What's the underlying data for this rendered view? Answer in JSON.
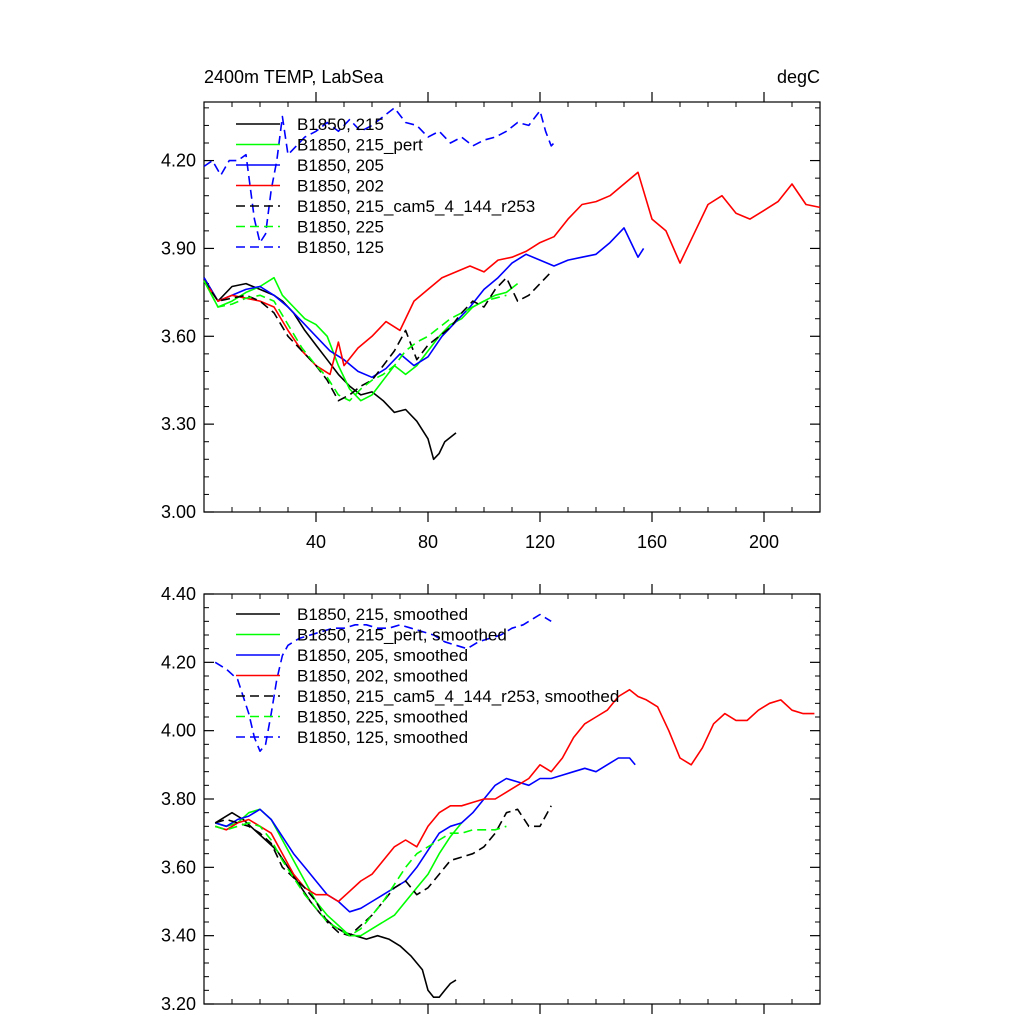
{
  "chart_data": [
    {
      "type": "line",
      "title_left": "2400m TEMP, LabSea",
      "title_right": "degC",
      "xlim": [
        0,
        220
      ],
      "ylim": [
        3.0,
        4.4
      ],
      "yticks": [
        3.0,
        3.3,
        3.6,
        3.9,
        4.2
      ],
      "ytick_labels": [
        "3.00",
        "3.30",
        "3.60",
        "3.90",
        "4.20"
      ],
      "xticks": [
        40,
        80,
        120,
        160,
        200
      ],
      "xtick_labels": [
        "40",
        "80",
        "120",
        "160",
        "200"
      ],
      "grid": false,
      "legend_position": "top-left",
      "series": [
        {
          "name": "B1850, 215",
          "color": "#000000",
          "dash": "solid",
          "x": [
            0,
            5,
            10,
            15,
            20,
            25,
            28,
            32,
            36,
            40,
            44,
            48,
            52,
            56,
            60,
            64,
            68,
            72,
            76,
            80,
            82,
            84,
            86,
            90
          ],
          "y": [
            3.8,
            3.72,
            3.77,
            3.78,
            3.76,
            3.74,
            3.72,
            3.68,
            3.62,
            3.57,
            3.52,
            3.47,
            3.43,
            3.4,
            3.41,
            3.38,
            3.34,
            3.35,
            3.31,
            3.25,
            3.18,
            3.2,
            3.24,
            3.27
          ]
        },
        {
          "name": "B1850, 215_pert",
          "color": "#00ff00",
          "dash": "solid",
          "x": [
            0,
            5,
            10,
            15,
            20,
            25,
            28,
            32,
            36,
            40,
            44,
            48,
            52,
            56,
            60,
            64,
            68,
            72,
            76,
            80,
            84,
            88,
            92,
            96,
            100,
            104,
            108,
            112
          ],
          "y": [
            3.79,
            3.7,
            3.72,
            3.75,
            3.77,
            3.8,
            3.74,
            3.7,
            3.66,
            3.64,
            3.6,
            3.5,
            3.42,
            3.38,
            3.4,
            3.45,
            3.5,
            3.47,
            3.5,
            3.55,
            3.6,
            3.64,
            3.66,
            3.7,
            3.72,
            3.74,
            3.75,
            3.78
          ]
        },
        {
          "name": "B1850, 205",
          "color": "#0000ff",
          "dash": "solid",
          "x": [
            0,
            5,
            10,
            15,
            20,
            25,
            30,
            35,
            40,
            45,
            50,
            55,
            60,
            65,
            70,
            75,
            80,
            85,
            90,
            95,
            100,
            105,
            110,
            115,
            120,
            125,
            130,
            135,
            140,
            145,
            150,
            155,
            157
          ],
          "y": [
            3.8,
            3.72,
            3.74,
            3.76,
            3.77,
            3.74,
            3.7,
            3.65,
            3.6,
            3.55,
            3.52,
            3.48,
            3.46,
            3.49,
            3.54,
            3.5,
            3.53,
            3.6,
            3.65,
            3.7,
            3.76,
            3.8,
            3.85,
            3.88,
            3.86,
            3.84,
            3.86,
            3.87,
            3.88,
            3.92,
            3.97,
            3.87,
            3.9
          ]
        },
        {
          "name": "B1850, 202",
          "color": "#ff0000",
          "dash": "solid",
          "x": [
            0,
            5,
            10,
            15,
            20,
            25,
            30,
            35,
            40,
            45,
            48,
            50,
            55,
            60,
            65,
            70,
            75,
            80,
            85,
            90,
            95,
            100,
            105,
            110,
            115,
            120,
            125,
            130,
            135,
            140,
            145,
            150,
            155,
            160,
            165,
            170,
            175,
            180,
            185,
            190,
            195,
            200,
            205,
            210,
            215,
            220
          ],
          "y": [
            3.79,
            3.72,
            3.74,
            3.73,
            3.72,
            3.7,
            3.62,
            3.55,
            3.5,
            3.47,
            3.58,
            3.5,
            3.56,
            3.6,
            3.65,
            3.62,
            3.72,
            3.76,
            3.8,
            3.82,
            3.84,
            3.82,
            3.86,
            3.87,
            3.89,
            3.92,
            3.94,
            4.0,
            4.05,
            4.06,
            4.08,
            4.12,
            4.16,
            4.0,
            3.96,
            3.85,
            3.95,
            4.05,
            4.08,
            4.02,
            4.0,
            4.03,
            4.06,
            4.12,
            4.05,
            4.04
          ]
        },
        {
          "name": "B1850, 215_cam5_4_144_r253",
          "color": "#000000",
          "dash": "dashed",
          "x": [
            0,
            5,
            10,
            15,
            20,
            25,
            30,
            35,
            40,
            44,
            48,
            52,
            56,
            60,
            64,
            68,
            72,
            76,
            80,
            84,
            88,
            92,
            96,
            100,
            104,
            108,
            112,
            116,
            120,
            124
          ],
          "y": [
            3.79,
            3.72,
            3.73,
            3.74,
            3.72,
            3.68,
            3.6,
            3.55,
            3.5,
            3.45,
            3.38,
            3.4,
            3.43,
            3.45,
            3.5,
            3.55,
            3.62,
            3.52,
            3.57,
            3.6,
            3.63,
            3.68,
            3.72,
            3.7,
            3.76,
            3.8,
            3.72,
            3.74,
            3.78,
            3.82
          ]
        },
        {
          "name": "B1850, 225",
          "color": "#00ff00",
          "dash": "dashed",
          "x": [
            0,
            5,
            10,
            15,
            20,
            25,
            30,
            35,
            40,
            44,
            48,
            52,
            56,
            60,
            64,
            68,
            72,
            76,
            80,
            84,
            88,
            92,
            96,
            100,
            104,
            108
          ],
          "y": [
            3.79,
            3.7,
            3.71,
            3.73,
            3.74,
            3.72,
            3.64,
            3.56,
            3.5,
            3.46,
            3.4,
            3.38,
            3.42,
            3.45,
            3.47,
            3.5,
            3.55,
            3.58,
            3.6,
            3.63,
            3.66,
            3.68,
            3.7,
            3.72,
            3.73,
            3.74
          ]
        },
        {
          "name": "B1850, 125",
          "color": "#0000ff",
          "dash": "dashed",
          "x": [
            0,
            3,
            6,
            9,
            12,
            15,
            18,
            20,
            22,
            24,
            26,
            28,
            30,
            33,
            36,
            40,
            44,
            48,
            52,
            56,
            60,
            64,
            68,
            72,
            76,
            80,
            84,
            88,
            92,
            96,
            100,
            104,
            108,
            112,
            116,
            120,
            122,
            124,
            126
          ],
          "y": [
            4.18,
            4.2,
            4.15,
            4.2,
            4.2,
            4.22,
            4.0,
            3.92,
            3.95,
            4.1,
            4.2,
            4.35,
            4.22,
            4.25,
            4.28,
            4.3,
            4.33,
            4.3,
            4.34,
            4.3,
            4.32,
            4.35,
            4.38,
            4.33,
            4.32,
            4.28,
            4.3,
            4.26,
            4.28,
            4.25,
            4.27,
            4.28,
            4.3,
            4.33,
            4.32,
            4.37,
            4.3,
            4.25,
            4.27
          ]
        }
      ]
    },
    {
      "type": "line",
      "title_left": "",
      "title_right": "",
      "xlim": [
        0,
        220
      ],
      "ylim": [
        3.2,
        4.4
      ],
      "yticks": [
        3.2,
        3.4,
        3.6,
        3.8,
        4.0,
        4.2,
        4.4
      ],
      "ytick_labels": [
        "3.20",
        "3.40",
        "3.60",
        "3.80",
        "4.00",
        "4.20",
        "4.40"
      ],
      "xticks": [
        40,
        80,
        120,
        160,
        200
      ],
      "xtick_labels": [],
      "grid": false,
      "legend_position": "top-left",
      "series": [
        {
          "name": "B1850, 215, smoothed",
          "color": "#000000",
          "dash": "solid",
          "x": [
            4,
            8,
            10,
            14,
            18,
            22,
            26,
            30,
            34,
            38,
            42,
            46,
            50,
            54,
            58,
            62,
            66,
            70,
            74,
            78,
            80,
            82,
            84,
            86,
            88,
            90
          ],
          "y": [
            3.73,
            3.75,
            3.76,
            3.74,
            3.71,
            3.68,
            3.65,
            3.6,
            3.55,
            3.5,
            3.46,
            3.43,
            3.41,
            3.4,
            3.39,
            3.4,
            3.39,
            3.37,
            3.34,
            3.3,
            3.24,
            3.22,
            3.22,
            3.24,
            3.26,
            3.27
          ]
        },
        {
          "name": "B1850, 215_pert, smoothed",
          "color": "#00ff00",
          "dash": "solid",
          "x": [
            4,
            8,
            12,
            16,
            20,
            24,
            28,
            32,
            36,
            40,
            44,
            48,
            52,
            56,
            60,
            64,
            68,
            72,
            76,
            80,
            84,
            88,
            92
          ],
          "y": [
            3.73,
            3.72,
            3.73,
            3.76,
            3.77,
            3.74,
            3.68,
            3.62,
            3.56,
            3.5,
            3.46,
            3.43,
            3.4,
            3.4,
            3.42,
            3.44,
            3.46,
            3.5,
            3.54,
            3.58,
            3.64,
            3.69,
            3.73
          ]
        },
        {
          "name": "B1850, 205, smoothed",
          "color": "#0000ff",
          "dash": "solid",
          "x": [
            4,
            8,
            12,
            16,
            20,
            24,
            28,
            32,
            36,
            40,
            44,
            48,
            52,
            56,
            60,
            64,
            68,
            72,
            76,
            80,
            84,
            88,
            92,
            96,
            100,
            104,
            108,
            112,
            116,
            120,
            124,
            128,
            132,
            136,
            140,
            144,
            148,
            152,
            154
          ],
          "y": [
            3.73,
            3.72,
            3.74,
            3.75,
            3.77,
            3.74,
            3.69,
            3.64,
            3.6,
            3.56,
            3.52,
            3.5,
            3.47,
            3.48,
            3.5,
            3.52,
            3.54,
            3.56,
            3.6,
            3.65,
            3.7,
            3.72,
            3.73,
            3.76,
            3.8,
            3.84,
            3.86,
            3.85,
            3.84,
            3.86,
            3.86,
            3.87,
            3.88,
            3.89,
            3.88,
            3.9,
            3.92,
            3.92,
            3.9
          ]
        },
        {
          "name": "B1850, 202, smoothed",
          "color": "#ff0000",
          "dash": "solid",
          "x": [
            4,
            8,
            12,
            16,
            20,
            24,
            28,
            32,
            36,
            40,
            44,
            48,
            52,
            56,
            60,
            64,
            68,
            72,
            76,
            80,
            84,
            88,
            92,
            96,
            100,
            104,
            108,
            112,
            116,
            120,
            124,
            128,
            132,
            136,
            140,
            144,
            148,
            152,
            155,
            158,
            162,
            166,
            170,
            174,
            178,
            182,
            186,
            190,
            194,
            198,
            202,
            206,
            210,
            214,
            218
          ],
          "y": [
            3.72,
            3.71,
            3.73,
            3.74,
            3.72,
            3.7,
            3.64,
            3.58,
            3.54,
            3.52,
            3.52,
            3.5,
            3.53,
            3.56,
            3.58,
            3.62,
            3.66,
            3.68,
            3.66,
            3.72,
            3.76,
            3.78,
            3.78,
            3.79,
            3.8,
            3.8,
            3.82,
            3.84,
            3.86,
            3.9,
            3.88,
            3.92,
            3.98,
            4.02,
            4.04,
            4.06,
            4.1,
            4.12,
            4.1,
            4.09,
            4.07,
            4.0,
            3.92,
            3.9,
            3.95,
            4.02,
            4.05,
            4.03,
            4.03,
            4.06,
            4.08,
            4.09,
            4.06,
            4.05,
            4.05
          ]
        },
        {
          "name": "B1850, 215_cam5_4_144_r253, smoothed",
          "color": "#000000",
          "dash": "dashed",
          "x": [
            4,
            8,
            12,
            16,
            20,
            24,
            28,
            32,
            36,
            40,
            44,
            48,
            52,
            56,
            60,
            64,
            68,
            72,
            76,
            80,
            84,
            88,
            92,
            96,
            100,
            104,
            108,
            112,
            116,
            120,
            124
          ],
          "y": [
            3.73,
            3.74,
            3.73,
            3.72,
            3.7,
            3.67,
            3.6,
            3.57,
            3.54,
            3.5,
            3.44,
            3.41,
            3.4,
            3.43,
            3.46,
            3.5,
            3.54,
            3.56,
            3.52,
            3.54,
            3.58,
            3.62,
            3.63,
            3.64,
            3.66,
            3.7,
            3.76,
            3.77,
            3.72,
            3.72,
            3.78
          ]
        },
        {
          "name": "B1850, 225, smoothed",
          "color": "#00ff00",
          "dash": "dashed",
          "x": [
            4,
            8,
            12,
            16,
            20,
            24,
            28,
            32,
            36,
            40,
            44,
            48,
            52,
            56,
            60,
            64,
            68,
            72,
            76,
            80,
            84,
            88,
            92,
            96,
            100,
            104,
            108
          ],
          "y": [
            3.72,
            3.71,
            3.72,
            3.73,
            3.72,
            3.68,
            3.62,
            3.57,
            3.52,
            3.48,
            3.44,
            3.42,
            3.4,
            3.42,
            3.46,
            3.5,
            3.55,
            3.6,
            3.64,
            3.66,
            3.68,
            3.7,
            3.7,
            3.71,
            3.71,
            3.71,
            3.72
          ]
        },
        {
          "name": "B1850, 125, smoothed",
          "color": "#0000ff",
          "dash": "dashed",
          "x": [
            4,
            8,
            12,
            16,
            18,
            20,
            22,
            24,
            26,
            28,
            30,
            34,
            38,
            42,
            46,
            50,
            54,
            58,
            62,
            66,
            70,
            74,
            78,
            82,
            86,
            90,
            94,
            98,
            102,
            106,
            110,
            114,
            118,
            120,
            122,
            124
          ],
          "y": [
            4.2,
            4.18,
            4.15,
            4.05,
            3.98,
            3.94,
            3.96,
            4.05,
            4.15,
            4.22,
            4.25,
            4.27,
            4.28,
            4.29,
            4.3,
            4.3,
            4.31,
            4.31,
            4.3,
            4.3,
            4.31,
            4.3,
            4.29,
            4.28,
            4.26,
            4.25,
            4.24,
            4.26,
            4.27,
            4.28,
            4.3,
            4.31,
            4.33,
            4.34,
            4.33,
            4.32
          ]
        }
      ]
    }
  ]
}
